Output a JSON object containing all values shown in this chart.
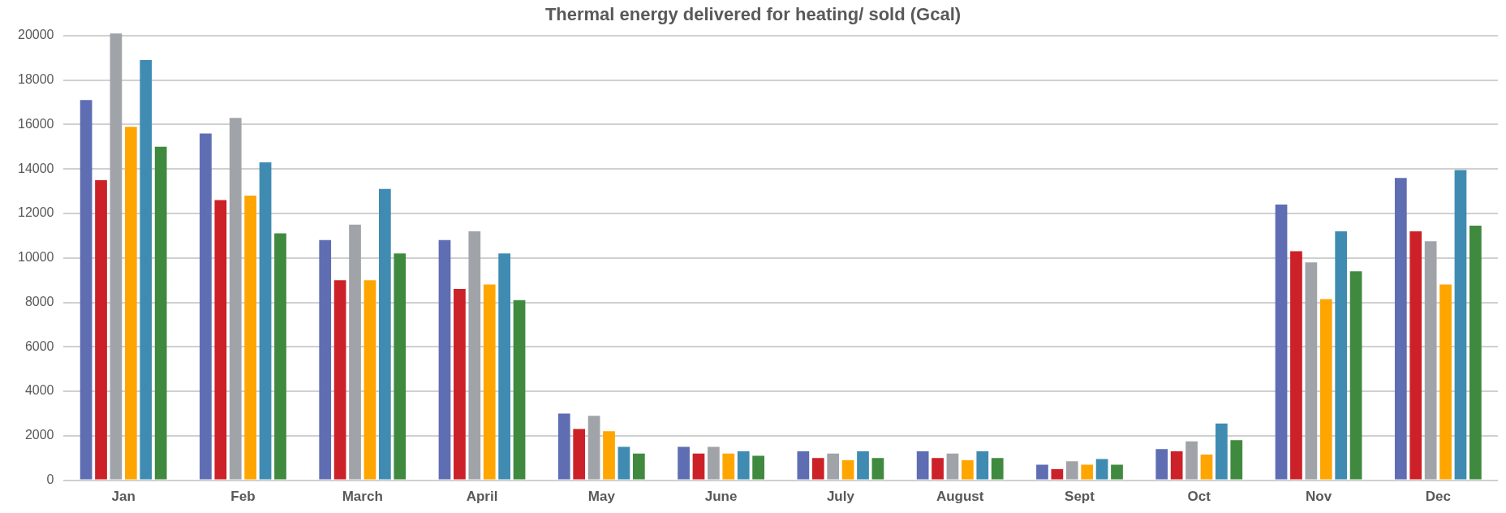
{
  "chart_data": {
    "type": "bar",
    "title": "Thermal energy delivered for heating/ sold (Gcal)",
    "categories": [
      "Jan",
      "Feb",
      "March",
      "April",
      "May",
      "June",
      "July",
      "August",
      "Sept",
      "Oct",
      "Nov",
      "Dec"
    ],
    "series": [
      {
        "color": "#5f6db3",
        "values": [
          17100,
          15600,
          10800,
          10800,
          3000,
          1500,
          1300,
          1300,
          700,
          1400,
          12400,
          13600
        ]
      },
      {
        "color": "#cc2128",
        "values": [
          13500,
          12600,
          9000,
          8600,
          2300,
          1200,
          1000,
          1000,
          500,
          1300,
          10300,
          11200
        ]
      },
      {
        "color": "#a0a4a8",
        "values": [
          20100,
          16300,
          11500,
          11200,
          2900,
          1500,
          1200,
          1200,
          850,
          1750,
          9800,
          10750
        ]
      },
      {
        "color": "#ffa500",
        "values": [
          15900,
          12800,
          9000,
          8800,
          2200,
          1200,
          900,
          900,
          700,
          1150,
          8150,
          8800
        ]
      },
      {
        "color": "#3f8bb2",
        "values": [
          18900,
          14300,
          13100,
          10200,
          1500,
          1300,
          1300,
          1300,
          950,
          2550,
          11200,
          13950
        ]
      },
      {
        "color": "#3f8a3f",
        "values": [
          15000,
          11100,
          10200,
          8100,
          1200,
          1100,
          1000,
          1000,
          700,
          1800,
          9400,
          11450
        ]
      }
    ],
    "ylim": [
      0,
      20200
    ],
    "yticks": [
      0,
      2000,
      4000,
      6000,
      8000,
      10000,
      12000,
      14000,
      16000,
      18000,
      20000
    ],
    "grid": "y",
    "legend": false
  }
}
